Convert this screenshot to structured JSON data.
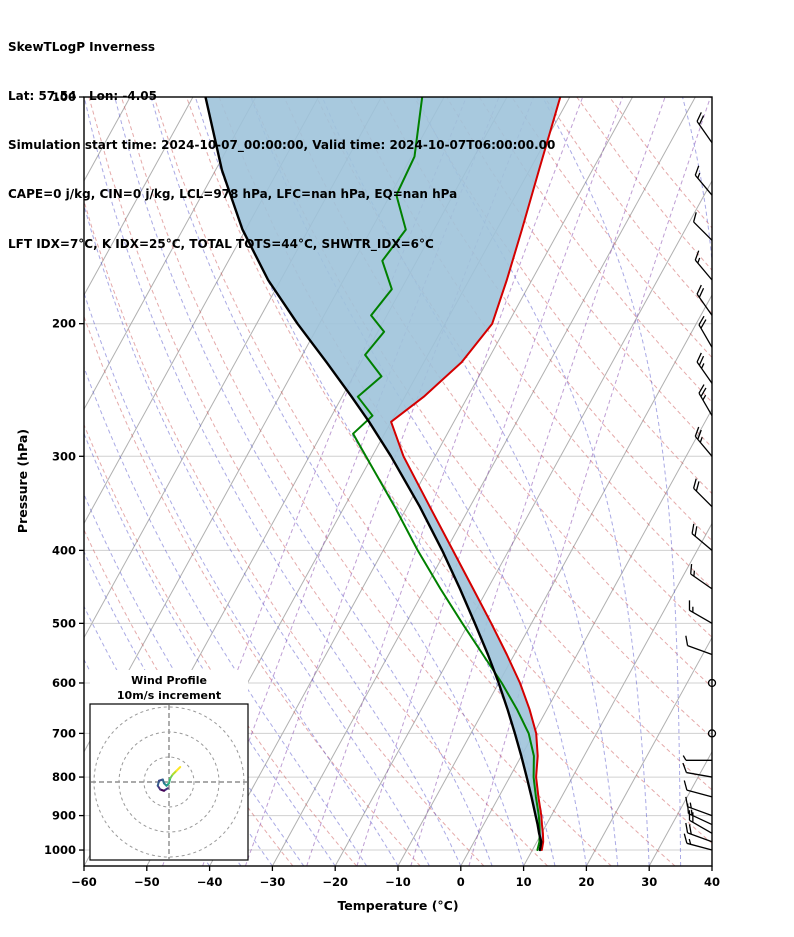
{
  "header": {
    "title": "SkewTLogP Inverness",
    "location_line": "Lat: 57.54   Lon: -4.05",
    "time_line": "Simulation start time: 2024-10-07_00:00:00, Valid time: 2024-10-07T06:00:00.00",
    "stability_line1": "CAPE=0 j/kg, CIN=0 j/kg, LCL=978 hPa, LFC=nan hPa, EQ=nan hPa",
    "stability_line2": "LFT IDX=7°C, K IDX=25°C, TOTAL TOTS=44°C, SHWTR_IDX=6°C"
  },
  "chart_data": {
    "type": "skewt-logp",
    "title": "SkewTLogP Inverness",
    "xlabel": "Temperature (°C)",
    "ylabel": "Pressure (hPa)",
    "xlim": [
      -60,
      40
    ],
    "plim": [
      100,
      1050
    ],
    "temp_ticks": [
      -60,
      -50,
      -40,
      -30,
      -20,
      -10,
      0,
      10,
      20,
      30,
      40
    ],
    "pressure_ticks": [
      100,
      200,
      300,
      400,
      500,
      600,
      700,
      800,
      900,
      1000
    ],
    "skew_slope": 0.55,
    "background": {
      "isotherm_color": "#b0b0b0",
      "dry_adiabat_color": "#cc5555",
      "moist_adiabat_color": "#5555cc",
      "mixing_ratio_color": "#8a4fb0",
      "grid_color": "#d0d0d0"
    },
    "series": {
      "temperature": {
        "name": "Temperature",
        "color": "#d40000",
        "points": [
          [
            1000,
            11.5
          ],
          [
            975,
            11.0
          ],
          [
            950,
            10.2
          ],
          [
            925,
            9.3
          ],
          [
            900,
            8.4
          ],
          [
            850,
            6.3
          ],
          [
            800,
            4.2
          ],
          [
            750,
            2.6
          ],
          [
            700,
            0.4
          ],
          [
            650,
            -2.8
          ],
          [
            600,
            -6.6
          ],
          [
            550,
            -11.2
          ],
          [
            500,
            -16.4
          ],
          [
            450,
            -22.3
          ],
          [
            400,
            -28.9
          ],
          [
            350,
            -36.4
          ],
          [
            300,
            -45.0
          ],
          [
            270,
            -50.0
          ],
          [
            250,
            -47.0
          ],
          [
            225,
            -44.0
          ],
          [
            200,
            -42.5
          ],
          [
            175,
            -44.0
          ],
          [
            150,
            -46.0
          ],
          [
            125,
            -48.5
          ],
          [
            100,
            -51.5
          ]
        ]
      },
      "dewpoint": {
        "name": "Dewpoint",
        "color": "#008000",
        "points": [
          [
            1000,
            10.8
          ],
          [
            975,
            10.4
          ],
          [
            950,
            9.7
          ],
          [
            925,
            8.9
          ],
          [
            900,
            8.0
          ],
          [
            850,
            5.9
          ],
          [
            800,
            3.8
          ],
          [
            750,
            2.0
          ],
          [
            700,
            -0.8
          ],
          [
            650,
            -4.8
          ],
          [
            600,
            -9.5
          ],
          [
            550,
            -15.0
          ],
          [
            500,
            -21.0
          ],
          [
            450,
            -27.5
          ],
          [
            400,
            -34.5
          ],
          [
            350,
            -42.0
          ],
          [
            300,
            -51.0
          ],
          [
            280,
            -55.0
          ],
          [
            265,
            -53.5
          ],
          [
            250,
            -57.5
          ],
          [
            235,
            -55.5
          ],
          [
            220,
            -60.0
          ],
          [
            205,
            -59.0
          ],
          [
            195,
            -62.5
          ],
          [
            180,
            -61.5
          ],
          [
            165,
            -65.5
          ],
          [
            150,
            -64.5
          ],
          [
            135,
            -69.0
          ],
          [
            120,
            -69.5
          ],
          [
            100,
            -73.5
          ]
        ]
      },
      "parcel": {
        "name": "Parcel",
        "color": "#000000",
        "points": [
          [
            1000,
            11.2
          ],
          [
            975,
            10.7
          ],
          [
            950,
            9.6
          ],
          [
            925,
            8.6
          ],
          [
            900,
            7.5
          ],
          [
            850,
            5.2
          ],
          [
            800,
            2.7
          ],
          [
            750,
            0.0
          ],
          [
            700,
            -3.0
          ],
          [
            650,
            -6.3
          ],
          [
            600,
            -10.0
          ],
          [
            550,
            -14.2
          ],
          [
            500,
            -19.0
          ],
          [
            450,
            -24.4
          ],
          [
            400,
            -30.6
          ],
          [
            350,
            -38.0
          ],
          [
            300,
            -47.0
          ],
          [
            270,
            -53.5
          ],
          [
            250,
            -58.5
          ],
          [
            225,
            -65.5
          ],
          [
            200,
            -73.5
          ],
          [
            175,
            -82.0
          ],
          [
            150,
            -90.5
          ],
          [
            125,
            -99.0
          ],
          [
            100,
            -108.0
          ]
        ]
      }
    },
    "shade": {
      "between": [
        "parcel",
        "temperature"
      ],
      "color": "#9fc3da",
      "opacity": 0.9
    },
    "wind_barbs": [
      {
        "p": 115,
        "spd": 20,
        "dir": 325
      },
      {
        "p": 135,
        "spd": 15,
        "dir": 320
      },
      {
        "p": 155,
        "spd": 10,
        "dir": 315
      },
      {
        "p": 175,
        "spd": 15,
        "dir": 320
      },
      {
        "p": 195,
        "spd": 20,
        "dir": 325
      },
      {
        "p": 215,
        "spd": 20,
        "dir": 330
      },
      {
        "p": 240,
        "spd": 25,
        "dir": 325
      },
      {
        "p": 265,
        "spd": 25,
        "dir": 330
      },
      {
        "p": 300,
        "spd": 25,
        "dir": 320
      },
      {
        "p": 350,
        "spd": 20,
        "dir": 315
      },
      {
        "p": 400,
        "spd": 20,
        "dir": 310
      },
      {
        "p": 450,
        "spd": 15,
        "dir": 305
      },
      {
        "p": 500,
        "spd": 15,
        "dir": 300
      },
      {
        "p": 550,
        "spd": 10,
        "dir": 290
      },
      {
        "p": 600,
        "spd": 0,
        "dir": 0
      },
      {
        "p": 700,
        "spd": 0,
        "dir": 0
      },
      {
        "p": 760,
        "spd": 5,
        "dir": 270
      },
      {
        "p": 800,
        "spd": 10,
        "dir": 280
      },
      {
        "p": 850,
        "spd": 10,
        "dir": 285
      },
      {
        "p": 900,
        "spd": 15,
        "dir": 290
      },
      {
        "p": 925,
        "spd": 15,
        "dir": 295
      },
      {
        "p": 950,
        "spd": 20,
        "dir": 300
      },
      {
        "p": 975,
        "spd": 20,
        "dir": 290
      },
      {
        "p": 1000,
        "spd": 15,
        "dir": 285
      }
    ],
    "hodograph": {
      "title": "Wind Profile",
      "subtitle": "10m/s increment",
      "ring_increment_ms": 10,
      "rings": [
        10,
        20,
        30
      ],
      "trace": [
        {
          "u": -0.5,
          "v": -2.5,
          "c": "#440154"
        },
        {
          "u": -2.0,
          "v": -3.5,
          "c": "#46327e"
        },
        {
          "u": -3.5,
          "v": -3.0,
          "c": "#440154"
        },
        {
          "u": -4.5,
          "v": -1.5,
          "c": "#46327e"
        },
        {
          "u": -4.0,
          "v": 0.5,
          "c": "#365c8d"
        },
        {
          "u": -2.5,
          "v": 1.0,
          "c": "#3e4989"
        },
        {
          "u": -2.0,
          "v": -0.5,
          "c": "#31688e"
        },
        {
          "u": -1.0,
          "v": -1.5,
          "c": "#26828e"
        },
        {
          "u": 0.0,
          "v": -0.5,
          "c": "#1f9e89"
        },
        {
          "u": 0.5,
          "v": 1.5,
          "c": "#35b779"
        },
        {
          "u": 1.5,
          "v": 3.0,
          "c": "#6ece58"
        },
        {
          "u": 3.0,
          "v": 4.5,
          "c": "#b5de2b"
        },
        {
          "u": 4.5,
          "v": 6.0,
          "c": "#fde725"
        }
      ]
    }
  }
}
